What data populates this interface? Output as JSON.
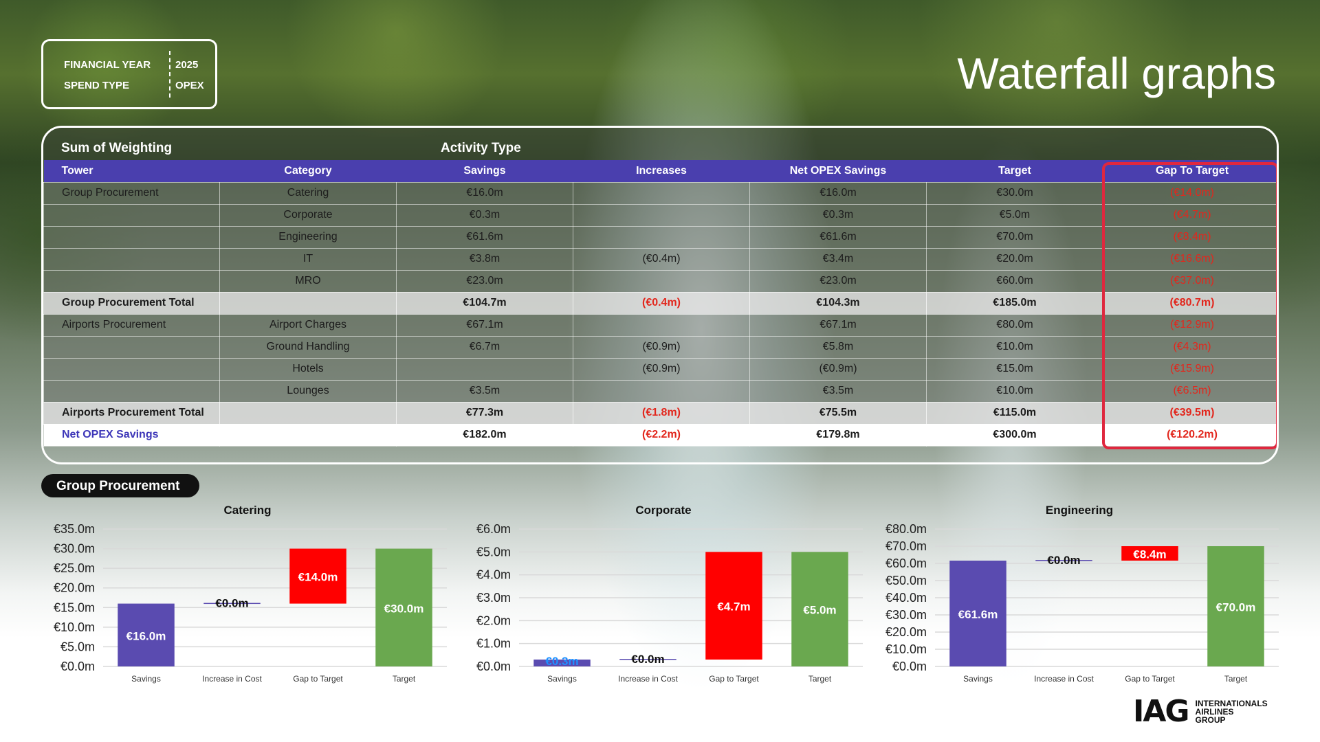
{
  "filters": {
    "financial_year_label": "FINANCIAL YEAR",
    "financial_year_value": "2025",
    "spend_type_label": "SPEND TYPE",
    "spend_type_value": "OPEX"
  },
  "page_title": "Waterfall graphs",
  "table": {
    "header_left": "Sum of Weighting",
    "header_activity": "Activity Type",
    "columns": [
      "Tower",
      "Category",
      "Savings",
      "Increases",
      "Net OPEX Savings",
      "Target",
      "Gap To Target"
    ],
    "rows": [
      {
        "type": "detail",
        "cells": [
          "Group Procurement",
          "Catering",
          "€16.0m",
          "",
          "€16.0m",
          "€30.0m",
          "(€14.0m)"
        ]
      },
      {
        "type": "detail",
        "cells": [
          "",
          "Corporate",
          "€0.3m",
          "",
          "€0.3m",
          "€5.0m",
          "(€4.7m)"
        ]
      },
      {
        "type": "detail",
        "cells": [
          "",
          "Engineering",
          "€61.6m",
          "",
          "€61.6m",
          "€70.0m",
          "(€8.4m)"
        ]
      },
      {
        "type": "detail",
        "cells": [
          "",
          "IT",
          "€3.8m",
          "(€0.4m)",
          "€3.4m",
          "€20.0m",
          "(€16.6m)"
        ]
      },
      {
        "type": "detail",
        "cells": [
          "",
          "MRO",
          "€23.0m",
          "",
          "€23.0m",
          "€60.0m",
          "(€37.0m)"
        ]
      },
      {
        "type": "total",
        "cells": [
          "Group Procurement Total",
          "",
          "€104.7m",
          "(€0.4m)",
          "€104.3m",
          "€185.0m",
          "(€80.7m)"
        ]
      },
      {
        "type": "detail",
        "cells": [
          "Airports Procurement",
          "Airport Charges",
          "€67.1m",
          "",
          "€67.1m",
          "€80.0m",
          "(€12.9m)"
        ]
      },
      {
        "type": "detail",
        "cells": [
          "",
          "Ground Handling",
          "€6.7m",
          "(€0.9m)",
          "€5.8m",
          "€10.0m",
          "(€4.3m)"
        ]
      },
      {
        "type": "detail",
        "cells": [
          "",
          "Hotels",
          "",
          "(€0.9m)",
          "(€0.9m)",
          "€15.0m",
          "(€15.9m)"
        ]
      },
      {
        "type": "detail",
        "cells": [
          "",
          "Lounges",
          "€3.5m",
          "",
          "€3.5m",
          "€10.0m",
          "(€6.5m)"
        ]
      },
      {
        "type": "total",
        "cells": [
          "Airports Procurement Total",
          "",
          "€77.3m",
          "(€1.8m)",
          "€75.5m",
          "€115.0m",
          "(€39.5m)"
        ]
      },
      {
        "type": "grand",
        "cells": [
          "Net OPEX Savings",
          "",
          "€182.0m",
          "(€2.2m)",
          "€179.8m",
          "€300.0m",
          "(€120.2m)"
        ]
      }
    ]
  },
  "section_label": "Group Procurement",
  "colors": {
    "savings": "#5a4bb0",
    "increase": "#5a4bb0",
    "gap": "#ff0000",
    "target": "#6aa84f",
    "header": "#4a3fae",
    "negative": "#e2271d"
  },
  "chart_data": [
    {
      "type": "bar",
      "title": "Catering",
      "categories": [
        "Savings",
        "Increase in Cost",
        "Gap to Target",
        "Target"
      ],
      "bars": [
        {
          "base": 0,
          "value": 16.0,
          "label": "€16.0m",
          "kind": "savings"
        },
        {
          "base": 16.0,
          "value": 0.0,
          "label": "€0.0m",
          "kind": "increase"
        },
        {
          "base": 16.0,
          "value": 14.0,
          "label": "€14.0m",
          "kind": "gap"
        },
        {
          "base": 0,
          "value": 30.0,
          "label": "€30.0m",
          "kind": "target"
        }
      ],
      "ylim": [
        0,
        35
      ],
      "yticks": [
        0,
        5,
        10,
        15,
        20,
        25,
        30,
        35
      ],
      "ytick_labels": [
        "€0.0m",
        "€5.0m",
        "€10.0m",
        "€15.0m",
        "€20.0m",
        "€25.0m",
        "€30.0m",
        "€35.0m"
      ]
    },
    {
      "type": "bar",
      "title": "Corporate",
      "categories": [
        "Savings",
        "Increase in Cost",
        "Gap to Target",
        "Target"
      ],
      "bars": [
        {
          "base": 0,
          "value": 0.3,
          "label": "€0.3m",
          "kind": "savings"
        },
        {
          "base": 0.3,
          "value": 0.0,
          "label": "€0.0m",
          "kind": "increase"
        },
        {
          "base": 0.3,
          "value": 4.7,
          "label": "€4.7m",
          "kind": "gap"
        },
        {
          "base": 0,
          "value": 5.0,
          "label": "€5.0m",
          "kind": "target"
        }
      ],
      "ylim": [
        0,
        6
      ],
      "yticks": [
        0,
        1,
        2,
        3,
        4,
        5,
        6
      ],
      "ytick_labels": [
        "€0.0m",
        "€1.0m",
        "€2.0m",
        "€3.0m",
        "€4.0m",
        "€5.0m",
        "€6.0m"
      ]
    },
    {
      "type": "bar",
      "title": "Engineering",
      "categories": [
        "Savings",
        "Increase in Cost",
        "Gap to Target",
        "Target"
      ],
      "bars": [
        {
          "base": 0,
          "value": 61.6,
          "label": "€61.6m",
          "kind": "savings"
        },
        {
          "base": 61.6,
          "value": 0.0,
          "label": "€0.0m",
          "kind": "increase"
        },
        {
          "base": 61.6,
          "value": 8.4,
          "label": "€8.4m",
          "kind": "gap"
        },
        {
          "base": 0,
          "value": 70.0,
          "label": "€70.0m",
          "kind": "target"
        }
      ],
      "ylim": [
        0,
        80
      ],
      "yticks": [
        0,
        10,
        20,
        30,
        40,
        50,
        60,
        70,
        80
      ],
      "ytick_labels": [
        "€0.0m",
        "€10.0m",
        "€20.0m",
        "€30.0m",
        "€40.0m",
        "€50.0m",
        "€60.0m",
        "€70.0m",
        "€80.0m"
      ]
    }
  ],
  "logo": {
    "mark": "IAG",
    "line1": "INTERNATIONALS",
    "line2": "AIRLINES",
    "line3": "GROUP"
  }
}
